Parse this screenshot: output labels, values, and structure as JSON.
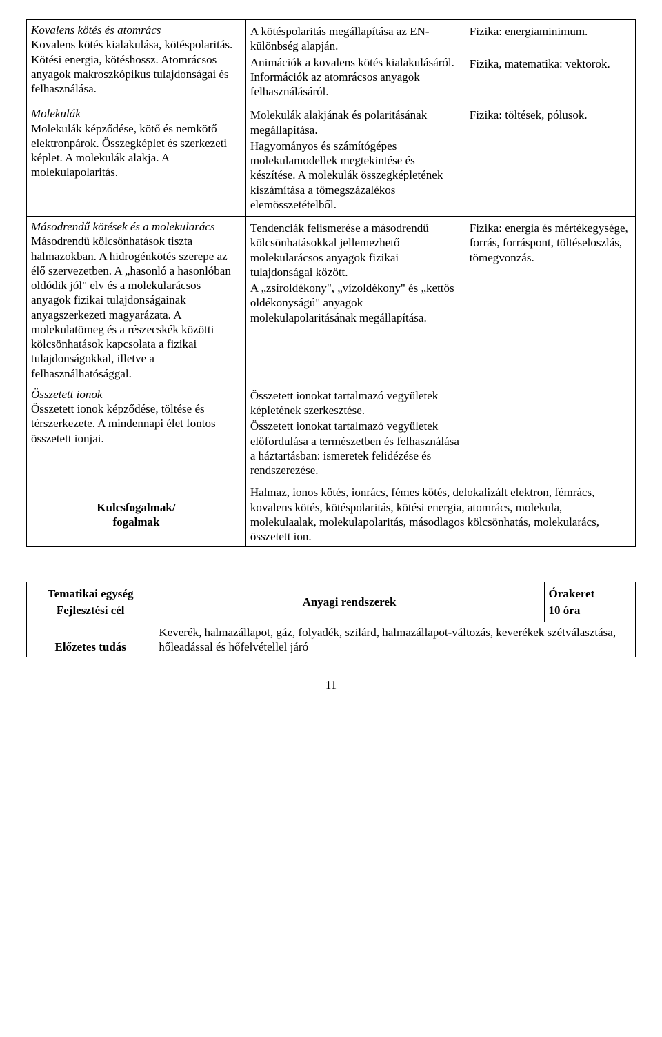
{
  "table1": {
    "rows": [
      {
        "c1_title": "Kovalens kötés és atomrács",
        "c1_body": "Kovalens kötés kialakulása, kötéspolaritás. Kötési energia, kötéshossz. Atomrácsos anyagok makroszkópikus tulajdonságai és felhasználása.",
        "c2": "A kötéspolaritás megállapítása az EN-különbség alapján.\n Animációk a kovalens kötés kialakulásáról. Információk az atomrácsos anyagok felhasználásáról.",
        "c3": "Fizika: energiaminimum.\n\nFizika, matematika: vektorok."
      },
      {
        "c1_title": "Molekulák",
        "c1_body": "Molekulák képződése, kötő és nemkötő elektronpárok. Összegképlet és szerkezeti képlet. A molekulák alakja. A molekulapolaritás.",
        "c2": "Molekulák alakjának és polaritásának megállapítása.\n Hagyományos és számítógépes molekulamodellek megtekintése és készítése. A molekulák összegképletének kiszámítása a tömegszázalékos elemösszetételből.",
        "c3": "Fizika: töltések, pólusok."
      },
      {
        "c1_title": "Másodrendű kötések és a molekularács",
        "c1_body": "Másodrendű kölcsönhatások tiszta halmazokban. A hidrogénkötés szerepe az élő szervezetben. A „hasonló a hasonlóban oldódik jól\" elv és a molekularácsos anyagok fizikai tulajdonságainak anyagszerkezeti magyarázata. A molekulatömeg és a részecskék közötti kölcsönhatások kapcsolata a fizikai tulajdonságokkal, illetve a felhasználhatósággal.",
        "c2": "Tendenciák felismerése a másodrendű kölcsönhatásokkal jellemezhető molekularácsos anyagok fizikai tulajdonságai között.\n A „zsíroldékony\", „vízoldékony\" és „kettős oldékonyságú\" anyagok molekulapolaritásának megállapítása.",
        "c3": "Fizika: energia és mértékegysége, forrás, forráspont, töltéseloszlás, tömegvonzás."
      },
      {
        "c1_title": "Összetett ionok",
        "c1_body": "Összetett ionok képződése, töltése és térszerkezete. A mindennapi élet fontos összetett ionjai.",
        "c2": "Összetett ionokat tartalmazó vegyületek képletének szerkesztése.\n Összetett ionokat tartalmazó vegyületek előfordulása a természetben és felhasználása a háztartásban: ismeretek felidézése és rendszerezése.",
        "c3": ""
      }
    ],
    "key_label": "Kulcsfogalmak/ fogalmak",
    "key_text": "Halmaz, ionos kötés, ionrács, fémes kötés, delokalizált elektron, fémrács, kovalens kötés, kötéspolaritás, kötési energia, atomrács, molekula, molekulaalak, molekulapolaritás, másodlagos kölcsönhatás, molekularács, összetett ion."
  },
  "table2": {
    "r1c1a": "Tematikai egység",
    "r1c1b": "Fejlesztési cél",
    "r1c2": "Anyagi rendszerek",
    "r1c3a": "Órakeret",
    "r1c3b": "10 óra",
    "r2c1": "Előzetes tudás",
    "r2c2": "Keverék, halmazállapot, gáz, folyadék, szilárd, halmazállapot-változás, keverékek szétválasztása, hőleadással és hőfelvétellel járó"
  },
  "page_number": "11"
}
